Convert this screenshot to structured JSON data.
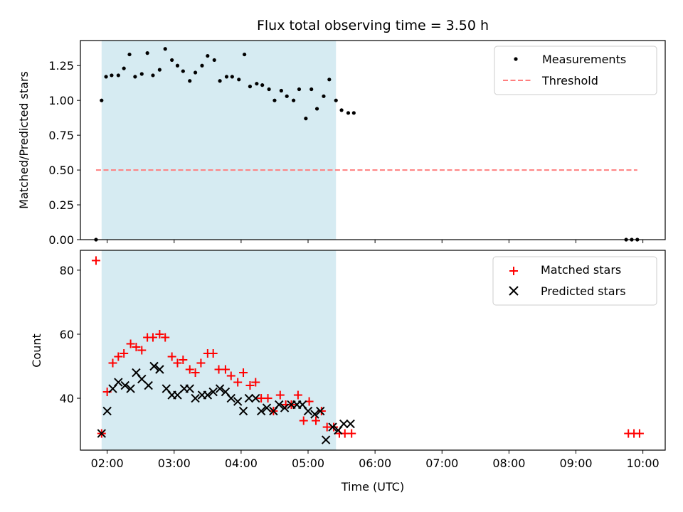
{
  "chart_data": {
    "type": "scatter",
    "title": "Flux total observing time = 3.50 h",
    "xlabel": "Time (UTC)",
    "x_tick_labels": [
      "02:00",
      "03:00",
      "04:00",
      "05:00",
      "06:00",
      "07:00",
      "08:00",
      "09:00",
      "10:00"
    ],
    "xlim": [
      "01:36",
      "10:20"
    ],
    "highlight_span": {
      "start": "01:55",
      "end": "05:25",
      "color": "#add8e6"
    },
    "panels": [
      {
        "ylabel": "Matched/Predicted stars",
        "ylim": [
          0,
          1.43
        ],
        "y_ticks": [
          0.0,
          0.25,
          0.5,
          0.75,
          1.0,
          1.25
        ],
        "y_tick_labels": [
          "0.00",
          "0.25",
          "0.50",
          "0.75",
          "1.00",
          "1.25"
        ],
        "legend": {
          "position": "top-right"
        },
        "series": [
          {
            "name": "Measurements",
            "marker": "dot",
            "color": "#000000",
            "points": [
              [
                "01:50",
                0.0
              ],
              [
                "01:55",
                1.0
              ],
              [
                "01:59",
                1.17
              ],
              [
                "02:04",
                1.18
              ],
              [
                "02:10",
                1.18
              ],
              [
                "02:15",
                1.23
              ],
              [
                "02:20",
                1.33
              ],
              [
                "02:25",
                1.17
              ],
              [
                "02:31",
                1.19
              ],
              [
                "02:36",
                1.34
              ],
              [
                "02:41",
                1.18
              ],
              [
                "02:47",
                1.22
              ],
              [
                "02:52",
                1.37
              ],
              [
                "02:58",
                1.29
              ],
              [
                "03:03",
                1.25
              ],
              [
                "03:08",
                1.21
              ],
              [
                "03:14",
                1.14
              ],
              [
                "03:19",
                1.2
              ],
              [
                "03:25",
                1.25
              ],
              [
                "03:30",
                1.32
              ],
              [
                "03:36",
                1.29
              ],
              [
                "03:41",
                1.14
              ],
              [
                "03:47",
                1.17
              ],
              [
                "03:52",
                1.17
              ],
              [
                "03:58",
                1.15
              ],
              [
                "04:03",
                1.33
              ],
              [
                "04:08",
                1.1
              ],
              [
                "04:14",
                1.12
              ],
              [
                "04:19",
                1.11
              ],
              [
                "04:25",
                1.08
              ],
              [
                "04:30",
                1.0
              ],
              [
                "04:36",
                1.07
              ],
              [
                "04:41",
                1.03
              ],
              [
                "04:47",
                1.0
              ],
              [
                "04:52",
                1.08
              ],
              [
                "04:58",
                0.87
              ],
              [
                "05:03",
                1.08
              ],
              [
                "05:08",
                0.94
              ],
              [
                "05:14",
                1.03
              ],
              [
                "05:19",
                1.15
              ],
              [
                "05:25",
                1.0
              ],
              [
                "05:30",
                0.93
              ],
              [
                "05:36",
                0.91
              ],
              [
                "05:41",
                0.91
              ],
              [
                "09:45",
                0.0
              ],
              [
                "09:50",
                0.0
              ],
              [
                "09:55",
                0.0
              ]
            ]
          },
          {
            "name": "Threshold",
            "marker": "dashed-line",
            "color": "#ff7f7f",
            "points": [
              [
                "01:50",
                0.5
              ],
              [
                "09:55",
                0.5
              ]
            ]
          }
        ]
      },
      {
        "ylabel": "Count",
        "ylim": [
          23.8,
          86.2
        ],
        "y_ticks": [
          40,
          60,
          80
        ],
        "y_tick_labels": [
          "40",
          "60",
          "80"
        ],
        "legend": {
          "position": "top-right"
        },
        "series": [
          {
            "name": "Matched stars",
            "marker": "plus",
            "color": "#ff0000",
            "points": [
              [
                "01:50",
                83
              ],
              [
                "01:55",
                29
              ],
              [
                "02:00",
                42
              ],
              [
                "02:05",
                51
              ],
              [
                "02:10",
                53
              ],
              [
                "02:15",
                54
              ],
              [
                "02:21",
                57
              ],
              [
                "02:26",
                56
              ],
              [
                "02:31",
                55
              ],
              [
                "02:36",
                59
              ],
              [
                "02:41",
                59
              ],
              [
                "02:47",
                60
              ],
              [
                "02:52",
                59
              ],
              [
                "02:58",
                53
              ],
              [
                "03:03",
                51
              ],
              [
                "03:08",
                52
              ],
              [
                "03:14",
                49
              ],
              [
                "03:19",
                48
              ],
              [
                "03:24",
                51
              ],
              [
                "03:30",
                54
              ],
              [
                "03:35",
                54
              ],
              [
                "03:40",
                49
              ],
              [
                "03:46",
                49
              ],
              [
                "03:51",
                47
              ],
              [
                "03:57",
                45
              ],
              [
                "04:02",
                48
              ],
              [
                "04:08",
                44
              ],
              [
                "04:13",
                45
              ],
              [
                "04:18",
                40
              ],
              [
                "04:24",
                40
              ],
              [
                "04:29",
                36
              ],
              [
                "04:35",
                41
              ],
              [
                "04:40",
                38
              ],
              [
                "04:45",
                38
              ],
              [
                "04:51",
                41
              ],
              [
                "04:56",
                33
              ],
              [
                "05:01",
                39
              ],
              [
                "05:07",
                33
              ],
              [
                "05:12",
                36
              ],
              [
                "05:17",
                31
              ],
              [
                "05:23",
                31
              ],
              [
                "05:28",
                29
              ],
              [
                "05:33",
                29
              ],
              [
                "05:39",
                29
              ],
              [
                "09:47",
                29
              ],
              [
                "09:52",
                29
              ],
              [
                "09:57",
                29
              ]
            ]
          },
          {
            "name": "Predicted stars",
            "marker": "x",
            "color": "#000000",
            "points": [
              [
                "01:55",
                29
              ],
              [
                "02:00",
                36
              ],
              [
                "02:05",
                43
              ],
              [
                "02:10",
                45
              ],
              [
                "02:16",
                44
              ],
              [
                "02:21",
                43
              ],
              [
                "02:26",
                48
              ],
              [
                "02:31",
                46
              ],
              [
                "02:37",
                44
              ],
              [
                "02:42",
                50
              ],
              [
                "02:47",
                49
              ],
              [
                "02:53",
                43
              ],
              [
                "02:58",
                41
              ],
              [
                "03:03",
                41
              ],
              [
                "03:09",
                43
              ],
              [
                "03:14",
                43
              ],
              [
                "03:19",
                40
              ],
              [
                "03:25",
                41
              ],
              [
                "03:30",
                41
              ],
              [
                "03:35",
                42
              ],
              [
                "03:41",
                43
              ],
              [
                "03:46",
                42
              ],
              [
                "03:51",
                40
              ],
              [
                "03:57",
                39
              ],
              [
                "04:02",
                36
              ],
              [
                "04:07",
                40
              ],
              [
                "04:13",
                40
              ],
              [
                "04:18",
                36
              ],
              [
                "04:23",
                37
              ],
              [
                "04:29",
                36
              ],
              [
                "04:34",
                38
              ],
              [
                "04:39",
                37
              ],
              [
                "04:45",
                38
              ],
              [
                "04:50",
                38
              ],
              [
                "04:55",
                38
              ],
              [
                "05:00",
                36
              ],
              [
                "05:06",
                35
              ],
              [
                "05:11",
                36
              ],
              [
                "05:16",
                27
              ],
              [
                "05:22",
                31
              ],
              [
                "05:27",
                30
              ],
              [
                "05:32",
                32
              ],
              [
                "05:38",
                32
              ]
            ]
          }
        ]
      }
    ]
  }
}
